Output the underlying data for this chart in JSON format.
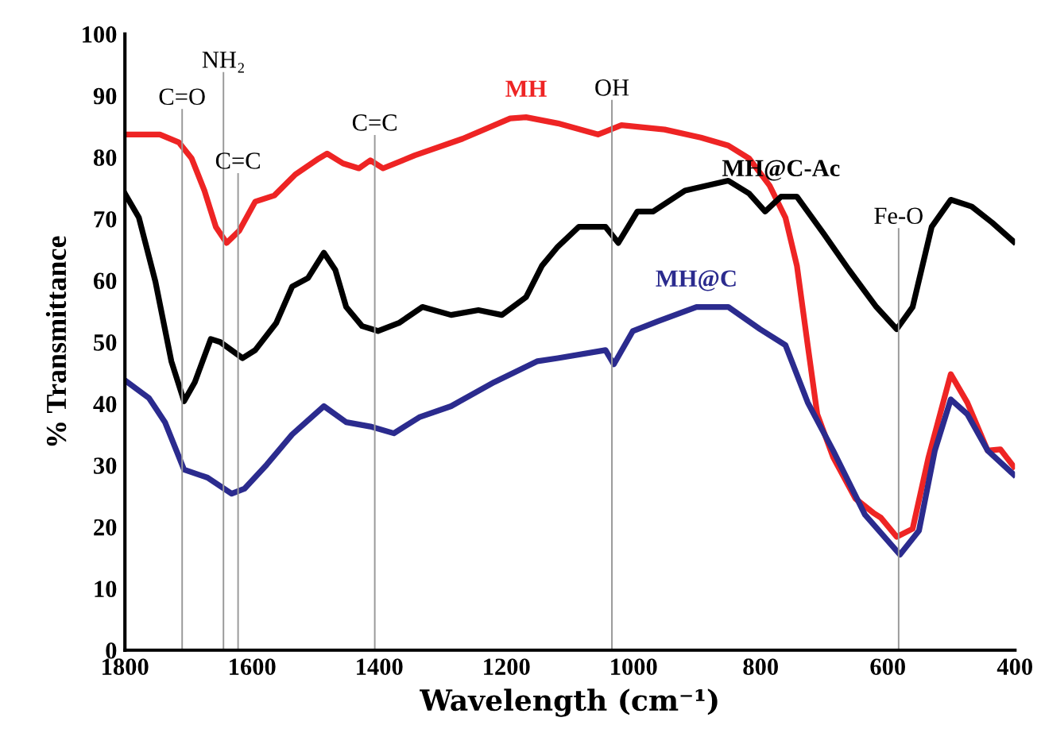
{
  "chart_data": {
    "type": "line",
    "xlabel": "Wavelength (cm⁻¹)",
    "ylabel": "% Transmittance",
    "xlim": [
      1800,
      400
    ],
    "xticks": [
      1800,
      1600,
      1400,
      1200,
      1000,
      800,
      600,
      400
    ],
    "ylim": [
      0,
      100
    ],
    "yticks": [
      0,
      10,
      20,
      30,
      40,
      50,
      60,
      70,
      80,
      90,
      100
    ],
    "grid": false,
    "legend": false,
    "marker": "none",
    "line_style": "solid",
    "series": [
      {
        "name": "MH",
        "color": "#ee2424",
        "x": [
          1800,
          1745,
          1715,
          1695,
          1675,
          1657,
          1640,
          1620,
          1595,
          1565,
          1532,
          1495,
          1482,
          1457,
          1432,
          1414,
          1394,
          1344,
          1269,
          1194,
          1169,
          1119,
          1056,
          1019,
          951,
          894,
          851,
          818,
          786,
          761,
          743,
          726,
          711,
          686,
          651,
          623,
          611,
          586,
          561,
          536,
          501,
          475,
          443,
          423,
          402
        ],
        "values": [
          83.7,
          83.7,
          82.4,
          79.8,
          74.6,
          68.7,
          66.1,
          68.1,
          72.8,
          73.8,
          77.2,
          79.8,
          80.6,
          79,
          78.2,
          79.5,
          78.2,
          80.3,
          83,
          86.3,
          86.5,
          85.5,
          83.7,
          85.2,
          84.5,
          83.2,
          81.9,
          79.8,
          75.4,
          70.2,
          62.4,
          49.5,
          38.3,
          31.3,
          24.6,
          22.3,
          21.5,
          18.4,
          19.7,
          31.3,
          44.8,
          40.2,
          32.4,
          32.6,
          29.8
        ]
      },
      {
        "name": "MH@C-Ac",
        "color": "#000000",
        "x": [
          1800,
          1778,
          1752,
          1727,
          1707,
          1690,
          1665,
          1650,
          1615,
          1595,
          1562,
          1537,
          1512,
          1487,
          1469,
          1452,
          1427,
          1402,
          1369,
          1332,
          1287,
          1244,
          1207,
          1169,
          1144,
          1119,
          1086,
          1044,
          1024,
          994,
          969,
          919,
          851,
          818,
          793,
          768,
          743,
          701,
          661,
          618,
          586,
          561,
          531,
          501,
          468,
          436,
          402
        ],
        "values": [
          74.1,
          70.2,
          59.8,
          46.9,
          40.4,
          43.5,
          50.5,
          50,
          47.4,
          48.7,
          53.1,
          59,
          60.4,
          64.5,
          61.7,
          55.7,
          52.6,
          51.8,
          53.1,
          55.7,
          54.4,
          55.2,
          54.4,
          57.3,
          62.4,
          65.5,
          68.7,
          68.7,
          66.1,
          71.2,
          71.2,
          74.6,
          76.2,
          74.1,
          71.2,
          73.6,
          73.6,
          67.6,
          61.7,
          55.7,
          52.1,
          55.7,
          68.7,
          73.1,
          72,
          69.4,
          66.3
        ]
      },
      {
        "name": "MH@C",
        "color": "#2b2b8e",
        "x": [
          1800,
          1762,
          1737,
          1707,
          1670,
          1632,
          1612,
          1577,
          1537,
          1487,
          1452,
          1414,
          1377,
          1337,
          1287,
          1219,
          1151,
          1119,
          1044,
          1031,
          1001,
          961,
          901,
          851,
          801,
          761,
          726,
          686,
          636,
          581,
          551,
          526,
          501,
          475,
          443,
          402
        ],
        "values": [
          43.8,
          40.9,
          37,
          29.3,
          28,
          25.4,
          26.2,
          30.1,
          35,
          39.6,
          37,
          36.3,
          35.2,
          37.8,
          39.6,
          43.5,
          46.9,
          47.4,
          48.7,
          46.4,
          51.8,
          53.4,
          55.7,
          55.7,
          52.1,
          49.5,
          40.2,
          32.4,
          22,
          15.5,
          19.4,
          32.4,
          40.7,
          38.3,
          32.4,
          28.5
        ]
      }
    ],
    "ref_lines": [
      {
        "axis": "x",
        "value": 1710,
        "label": "C=O",
        "color": "#999999"
      },
      {
        "axis": "x",
        "value": 1645,
        "label": "NH₂",
        "color": "#999999"
      },
      {
        "axis": "x",
        "value": 1622,
        "label": "C=C",
        "color": "#999999"
      },
      {
        "axis": "x",
        "value": 1407,
        "label": "C=C",
        "color": "#999999"
      },
      {
        "axis": "x",
        "value": 1034,
        "label": "OH",
        "color": "#999999"
      },
      {
        "axis": "x",
        "value": 583,
        "label": "Fe-O",
        "color": "#999999"
      }
    ]
  }
}
